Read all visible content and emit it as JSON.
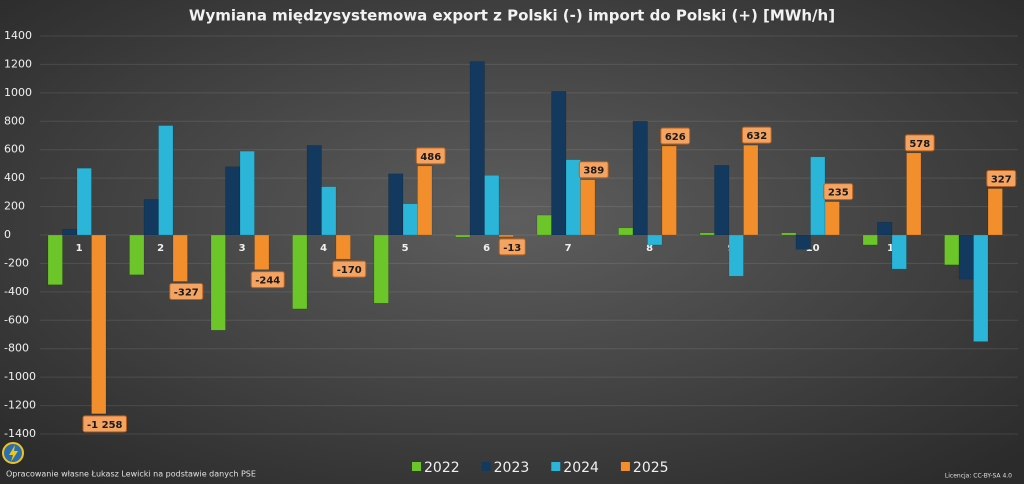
{
  "chart_data": {
    "type": "bar",
    "title": "Wymiana międzysystemowa export z Polski (-) import do Polski (+) [MWh/h]",
    "categories": [
      "1",
      "2",
      "3",
      "4",
      "5",
      "6",
      "7",
      "8",
      "9",
      "10",
      "11",
      "12"
    ],
    "series": [
      {
        "name": "2022",
        "color": "#6cc62a",
        "values": [
          -350,
          -280,
          -670,
          -520,
          -480,
          -15,
          140,
          50,
          15,
          15,
          -70,
          -210
        ]
      },
      {
        "name": "2023",
        "color": "#133a5e",
        "values": [
          40,
          250,
          480,
          630,
          430,
          1220,
          1010,
          800,
          490,
          -100,
          90,
          -310
        ]
      },
      {
        "name": "2024",
        "color": "#2bb5d8",
        "values": [
          470,
          770,
          590,
          340,
          220,
          420,
          530,
          -70,
          -290,
          550,
          -240,
          -750
        ]
      },
      {
        "name": "2025",
        "color": "#f28e2b",
        "values": [
          -1258,
          -327,
          -244,
          -170,
          486,
          -13,
          389,
          626,
          632,
          235,
          578,
          327
        ],
        "value_labels": [
          "-1 258",
          "-327",
          "-244",
          "-170",
          "486",
          "-13",
          "389",
          "626",
          "632",
          "235",
          "578",
          "327"
        ]
      }
    ],
    "ylim": [
      -1400,
      1400
    ],
    "yticks": [
      -1400,
      -1200,
      -1000,
      -800,
      -600,
      -400,
      -200,
      0,
      200,
      400,
      600,
      800,
      1000,
      1200,
      1400
    ],
    "grid": true,
    "legend": "bottom",
    "source_note": "Opracowanie własne Łukasz Lewicki na podstawie danych PSE",
    "license_note": "Licencja: CC-BY-SA 4.0"
  }
}
